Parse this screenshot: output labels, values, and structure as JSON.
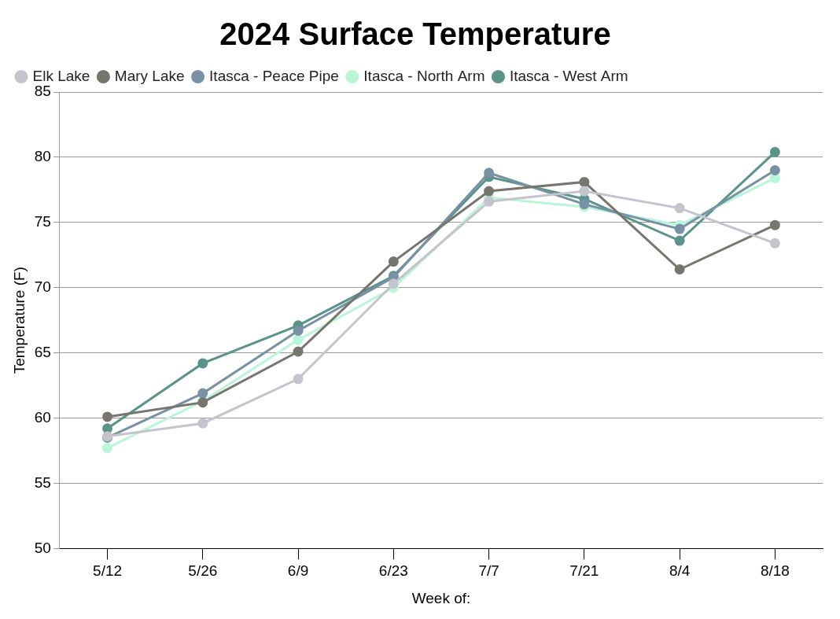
{
  "chart_data": {
    "type": "line",
    "title": "2024 Surface Temperature",
    "x_label": "Week of:",
    "y_label": "Temperature (F)",
    "categories": [
      "5/12",
      "5/26",
      "6/9",
      "6/23",
      "7/7",
      "7/21",
      "8/4",
      "8/18"
    ],
    "series": [
      {
        "name": "Elk Lake",
        "color": "#c4c4cc",
        "values": [
          58.6,
          59.6,
          63.0,
          70.3,
          76.6,
          77.4,
          76.1,
          73.4
        ]
      },
      {
        "name": "Mary Lake",
        "color": "#76766f",
        "values": [
          60.1,
          61.2,
          65.1,
          72.0,
          77.4,
          78.1,
          71.4,
          74.8
        ]
      },
      {
        "name": "Itasca - Peace Pipe",
        "color": "#7891a5",
        "values": [
          58.5,
          61.9,
          66.7,
          70.8,
          78.8,
          76.4,
          74.5,
          79.0
        ]
      },
      {
        "name": "Itasca - North Arm",
        "color": "#b9f5d8",
        "values": [
          57.7,
          61.3,
          66.0,
          70.0,
          76.9,
          76.2,
          74.8,
          78.4
        ]
      },
      {
        "name": "Itasca - West Arm",
        "color": "#5a9488",
        "values": [
          59.2,
          64.2,
          67.1,
          70.9,
          78.5,
          76.8,
          73.6,
          80.4
        ]
      }
    ],
    "ylim": [
      50,
      85
    ],
    "yticks": [
      50,
      55,
      60,
      65,
      70,
      75,
      80,
      85
    ],
    "grid": true,
    "legend": "top",
    "marker": "circle"
  }
}
